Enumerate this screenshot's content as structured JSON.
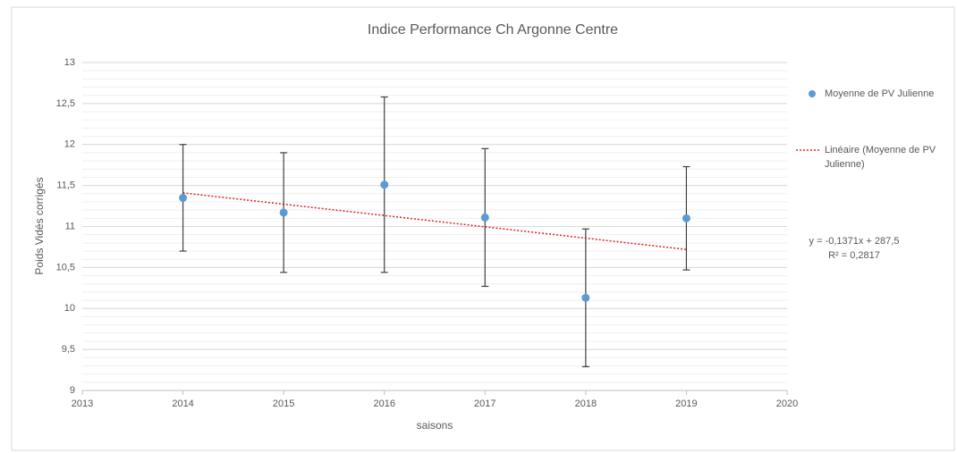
{
  "chart_data": {
    "type": "scatter",
    "title": "Indice Performance Ch Argonne Centre",
    "xlabel": "saisons",
    "ylabel": "Poids Vidés corrigés",
    "series": [
      {
        "name": "Moyenne de PV Julienne",
        "color": "#5b9bd5",
        "x": [
          2014,
          2015,
          2016,
          2017,
          2018,
          2019
        ],
        "values": [
          11.35,
          11.17,
          11.51,
          11.11,
          10.13,
          11.1
        ],
        "errors": [
          0.65,
          0.73,
          1.07,
          0.84,
          0.84,
          0.63
        ]
      }
    ],
    "trendline": {
      "name": "Linéaire (Moyenne de PV Julienne)",
      "color": "#e02020",
      "x": [
        2014,
        2019
      ],
      "values": [
        11.41,
        10.72
      ],
      "equation": "y = -0,1371x + 287,5",
      "r2": "R² = 0,2817"
    },
    "xlim": [
      2013,
      2020
    ],
    "xticks": [
      2013,
      2014,
      2015,
      2016,
      2017,
      2018,
      2019,
      2020
    ],
    "ylim": [
      9,
      13
    ],
    "yticks": [
      9,
      {
        "value": 9.5,
        "label": "9,5"
      },
      10,
      {
        "value": 10.5,
        "label": "10,5"
      },
      11,
      {
        "value": 11.5,
        "label": "11,5"
      },
      12,
      {
        "value": 12.5,
        "label": "12,5"
      },
      13
    ],
    "grid": true,
    "minor_grid": true,
    "legend": "right"
  }
}
